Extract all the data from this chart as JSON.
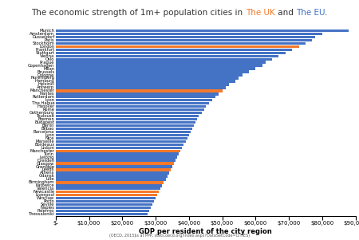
{
  "title_parts": [
    "The economic strength of 1m+ population cities in ",
    "The UK",
    " and ",
    "The EU",
    "."
  ],
  "title_colors": [
    "#333333",
    "#f4792b",
    "#333333",
    "#4472c4",
    "#333333"
  ],
  "xlabel": "GDP per resident of the city region",
  "xlabel2": "(OECD, 2015$s at PPP, stats.oecd.org/index.aspx?DataSetCode=CITIES)",
  "xlim": [
    0,
    90000
  ],
  "xticks": [
    0,
    10000,
    20000,
    30000,
    40000,
    50000,
    60000,
    70000,
    80000,
    90000
  ],
  "xticklabels": [
    "$-",
    "$10,000",
    "$20,000",
    "$30,000",
    "$40,000",
    "$50,000",
    "$60,000",
    "$70,000",
    "$80,000",
    "$90,000"
  ],
  "uk_color": "#f4792b",
  "eu_color": "#4472c4",
  "cities": [
    {
      "name": "Munich",
      "value": 88000,
      "uk": false
    },
    {
      "name": "Amsterdam",
      "value": 80000,
      "uk": false
    },
    {
      "name": "Dusseldorf",
      "value": 78000,
      "uk": false
    },
    {
      "name": "Paris",
      "value": 77000,
      "uk": false
    },
    {
      "name": "Stockholm",
      "value": 75000,
      "uk": false
    },
    {
      "name": "London",
      "value": 73000,
      "uk": true
    },
    {
      "name": "Frankfurt",
      "value": 71000,
      "uk": false
    },
    {
      "name": "Stuttgart",
      "value": 69000,
      "uk": false
    },
    {
      "name": "Vienna",
      "value": 67000,
      "uk": false
    },
    {
      "name": "Oslo",
      "value": 65000,
      "uk": false
    },
    {
      "name": "Prague",
      "value": 63000,
      "uk": false
    },
    {
      "name": "Copenhagen",
      "value": 62000,
      "uk": false
    },
    {
      "name": "Milan",
      "value": 60000,
      "uk": false
    },
    {
      "name": "Brussels",
      "value": 58000,
      "uk": false
    },
    {
      "name": "Cologne",
      "value": 56000,
      "uk": false
    },
    {
      "name": "Nuremberg",
      "value": 55000,
      "uk": false
    },
    {
      "name": "Hamburg",
      "value": 54000,
      "uk": false
    },
    {
      "name": "Helsinki",
      "value": 52000,
      "uk": false
    },
    {
      "name": "Antwerp",
      "value": 51000,
      "uk": false
    },
    {
      "name": "Manchester",
      "value": 50000,
      "uk": true
    },
    {
      "name": "Nantes",
      "value": 49000,
      "uk": false
    },
    {
      "name": "Rotterdam",
      "value": 48000,
      "uk": false
    },
    {
      "name": "Lyon",
      "value": 47000,
      "uk": false
    },
    {
      "name": "The Hague",
      "value": 46000,
      "uk": false
    },
    {
      "name": "Hanover",
      "value": 45000,
      "uk": false
    },
    {
      "name": "Rome",
      "value": 44500,
      "uk": false
    },
    {
      "name": "Gothenburg",
      "value": 44000,
      "uk": false
    },
    {
      "name": "Toulouse",
      "value": 43000,
      "uk": false
    },
    {
      "name": "Bremen",
      "value": 42500,
      "uk": false
    },
    {
      "name": "Budapest",
      "value": 42000,
      "uk": false
    },
    {
      "name": "Berlin",
      "value": 41500,
      "uk": false
    },
    {
      "name": "Bilbao",
      "value": 41000,
      "uk": false
    },
    {
      "name": "Barcelona",
      "value": 40500,
      "uk": false
    },
    {
      "name": "Lyon",
      "value": 40000,
      "uk": false
    },
    {
      "name": "Nice",
      "value": 39500,
      "uk": false
    },
    {
      "name": "Marseille",
      "value": 39000,
      "uk": false
    },
    {
      "name": "Bordeaux",
      "value": 38500,
      "uk": false
    },
    {
      "name": "Lisbon",
      "value": 38000,
      "uk": false
    },
    {
      "name": "Manchester",
      "value": 37500,
      "uk": true
    },
    {
      "name": "Turin",
      "value": 37000,
      "uk": false
    },
    {
      "name": "Leipzig",
      "value": 36500,
      "uk": false
    },
    {
      "name": "Dresden",
      "value": 36000,
      "uk": false
    },
    {
      "name": "Glasgow",
      "value": 35500,
      "uk": true
    },
    {
      "name": "Grenoble",
      "value": 35000,
      "uk": false
    },
    {
      "name": "Leeds",
      "value": 34500,
      "uk": true
    },
    {
      "name": "Athens",
      "value": 34000,
      "uk": false
    },
    {
      "name": "Gdansk",
      "value": 33500,
      "uk": false
    },
    {
      "name": "Lille",
      "value": 33000,
      "uk": false
    },
    {
      "name": "Birmingham",
      "value": 32500,
      "uk": true
    },
    {
      "name": "Katowice",
      "value": 32000,
      "uk": false
    },
    {
      "name": "Valencia",
      "value": 31500,
      "uk": false
    },
    {
      "name": "Newcastle",
      "value": 31000,
      "uk": true
    },
    {
      "name": "Liverpool",
      "value": 30500,
      "uk": true
    },
    {
      "name": "Wroclaw",
      "value": 30000,
      "uk": false
    },
    {
      "name": "Porto",
      "value": 29500,
      "uk": false
    },
    {
      "name": "Seville",
      "value": 29000,
      "uk": false
    },
    {
      "name": "Naples",
      "value": 28500,
      "uk": false
    },
    {
      "name": "Palermo",
      "value": 28000,
      "uk": false
    },
    {
      "name": "Thessaloniki",
      "value": 27500,
      "uk": false
    }
  ]
}
